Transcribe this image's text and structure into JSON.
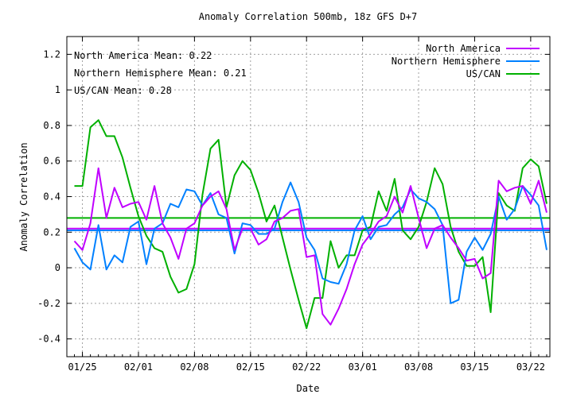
{
  "chart_data": {
    "type": "line",
    "title": "Anomaly Correlation 500mb, 18z GFS  D+7",
    "xlabel": "Date",
    "ylabel": "Anomaly Correlation",
    "ylim": [
      -0.5,
      1.3
    ],
    "y_ticks": [
      -0.4,
      -0.2,
      0,
      0.2,
      0.4,
      0.6,
      0.8,
      1,
      1.2
    ],
    "y_tick_labels": [
      "-0.4",
      "-0.2",
      "0",
      "0.2",
      "0.4",
      "0.6",
      "0.8",
      "1",
      "1.2"
    ],
    "x_start": "01/24",
    "x_end": "03/24",
    "x_ticks": [
      "01/25",
      "02/01",
      "02/08",
      "02/15",
      "02/22",
      "03/01",
      "03/08",
      "03/15",
      "03/22"
    ],
    "grid": true,
    "legend_position": "top-right",
    "annotations": [
      "North America Mean: 0.22",
      "Northern Hemisphere Mean: 0.21",
      "US/CAN Mean: 0.28"
    ],
    "series": [
      {
        "name": "North America",
        "color": "#c000ff",
        "mean": 0.22,
        "points": [
          [
            "01/24",
            0.15
          ],
          [
            "01/25",
            0.1
          ],
          [
            "01/26",
            0.25
          ],
          [
            "01/27",
            0.56
          ],
          [
            "01/28",
            0.28
          ],
          [
            "01/29",
            0.45
          ],
          [
            "01/30",
            0.34
          ],
          [
            "01/31",
            0.36
          ],
          [
            "02/01",
            0.37
          ],
          [
            "02/02",
            0.27
          ],
          [
            "02/03",
            0.46
          ],
          [
            "02/04",
            0.25
          ],
          [
            "02/05",
            0.17
          ],
          [
            "02/06",
            0.05
          ],
          [
            "02/07",
            0.22
          ],
          [
            "02/08",
            0.25
          ],
          [
            "02/09",
            0.35
          ],
          [
            "02/10",
            0.4
          ],
          [
            "02/11",
            0.43
          ],
          [
            "02/12",
            0.33
          ],
          [
            "02/13",
            0.1
          ],
          [
            "02/14",
            0.22
          ],
          [
            "02/15",
            0.22
          ],
          [
            "02/16",
            0.13
          ],
          [
            "02/17",
            0.16
          ],
          [
            "02/18",
            0.26
          ],
          [
            "02/19",
            0.28
          ],
          [
            "02/20",
            0.32
          ],
          [
            "02/21",
            0.33
          ],
          [
            "02/22",
            0.06
          ],
          [
            "02/23",
            0.07
          ],
          [
            "02/24",
            -0.26
          ],
          [
            "02/25",
            -0.32
          ],
          [
            "02/26",
            -0.23
          ],
          [
            "02/27",
            -0.12
          ],
          [
            "02/28",
            0.02
          ],
          [
            "03/01",
            0.13
          ],
          [
            "03/02",
            0.19
          ],
          [
            "03/03",
            0.26
          ],
          [
            "03/04",
            0.29
          ],
          [
            "03/05",
            0.4
          ],
          [
            "03/06",
            0.31
          ],
          [
            "03/07",
            0.46
          ],
          [
            "03/08",
            0.28
          ],
          [
            "03/09",
            0.11
          ],
          [
            "03/10",
            0.22
          ],
          [
            "03/11",
            0.24
          ],
          [
            "03/12",
            0.17
          ],
          [
            "03/13",
            0.11
          ],
          [
            "03/14",
            0.04
          ],
          [
            "03/15",
            0.05
          ],
          [
            "03/16",
            -0.06
          ],
          [
            "03/17",
            -0.03
          ],
          [
            "03/18",
            0.49
          ],
          [
            "03/19",
            0.43
          ],
          [
            "03/20",
            0.45
          ],
          [
            "03/21",
            0.46
          ],
          [
            "03/22",
            0.36
          ],
          [
            "03/23",
            0.49
          ],
          [
            "03/24",
            0.31
          ]
        ]
      },
      {
        "name": "Northern Hemisphere",
        "color": "#0080ff",
        "mean": 0.21,
        "points": [
          [
            "01/24",
            0.11
          ],
          [
            "01/25",
            0.03
          ],
          [
            "01/26",
            -0.01
          ],
          [
            "01/27",
            0.24
          ],
          [
            "01/28",
            -0.01
          ],
          [
            "01/29",
            0.07
          ],
          [
            "01/30",
            0.03
          ],
          [
            "01/31",
            0.23
          ],
          [
            "02/01",
            0.26
          ],
          [
            "02/02",
            0.02
          ],
          [
            "02/03",
            0.22
          ],
          [
            "02/04",
            0.25
          ],
          [
            "02/05",
            0.36
          ],
          [
            "02/06",
            0.34
          ],
          [
            "02/07",
            0.44
          ],
          [
            "02/08",
            0.43
          ],
          [
            "02/09",
            0.35
          ],
          [
            "02/10",
            0.42
          ],
          [
            "02/11",
            0.3
          ],
          [
            "02/12",
            0.28
          ],
          [
            "02/13",
            0.08
          ],
          [
            "02/14",
            0.25
          ],
          [
            "02/15",
            0.24
          ],
          [
            "02/16",
            0.19
          ],
          [
            "02/17",
            0.19
          ],
          [
            "02/18",
            0.22
          ],
          [
            "02/19",
            0.37
          ],
          [
            "02/20",
            0.48
          ],
          [
            "02/21",
            0.37
          ],
          [
            "02/22",
            0.17
          ],
          [
            "02/23",
            0.1
          ],
          [
            "02/24",
            -0.06
          ],
          [
            "02/25",
            -0.08
          ],
          [
            "02/26",
            -0.09
          ],
          [
            "02/27",
            0.02
          ],
          [
            "02/28",
            0.21
          ],
          [
            "03/01",
            0.29
          ],
          [
            "03/02",
            0.16
          ],
          [
            "03/03",
            0.23
          ],
          [
            "03/04",
            0.24
          ],
          [
            "03/05",
            0.3
          ],
          [
            "03/06",
            0.34
          ],
          [
            "03/07",
            0.44
          ],
          [
            "03/08",
            0.39
          ],
          [
            "03/09",
            0.37
          ],
          [
            "03/10",
            0.33
          ],
          [
            "03/11",
            0.24
          ],
          [
            "03/12",
            -0.2
          ],
          [
            "03/13",
            -0.18
          ],
          [
            "03/14",
            0.09
          ],
          [
            "03/15",
            0.17
          ],
          [
            "03/16",
            0.1
          ],
          [
            "03/17",
            0.19
          ],
          [
            "03/18",
            0.4
          ],
          [
            "03/19",
            0.27
          ],
          [
            "03/20",
            0.33
          ],
          [
            "03/21",
            0.46
          ],
          [
            "03/22",
            0.41
          ],
          [
            "03/23",
            0.35
          ],
          [
            "03/24",
            0.1
          ]
        ]
      },
      {
        "name": "US/CAN",
        "color": "#00b000",
        "mean": 0.28,
        "points": [
          [
            "01/24",
            0.46
          ],
          [
            "01/25",
            0.46
          ],
          [
            "01/26",
            0.79
          ],
          [
            "01/27",
            0.83
          ],
          [
            "01/28",
            0.74
          ],
          [
            "01/29",
            0.74
          ],
          [
            "01/30",
            0.62
          ],
          [
            "01/31",
            0.45
          ],
          [
            "02/01",
            0.29
          ],
          [
            "02/02",
            0.18
          ],
          [
            "02/03",
            0.11
          ],
          [
            "02/04",
            0.09
          ],
          [
            "02/05",
            -0.05
          ],
          [
            "02/06",
            -0.14
          ],
          [
            "02/07",
            -0.12
          ],
          [
            "02/08",
            0.02
          ],
          [
            "02/09",
            0.41
          ],
          [
            "02/10",
            0.67
          ],
          [
            "02/11",
            0.72
          ],
          [
            "02/12",
            0.34
          ],
          [
            "02/13",
            0.52
          ],
          [
            "02/14",
            0.6
          ],
          [
            "02/15",
            0.55
          ],
          [
            "02/16",
            0.42
          ],
          [
            "02/17",
            0.26
          ],
          [
            "02/18",
            0.35
          ],
          [
            "02/19",
            0.17
          ],
          [
            "02/20",
            -0.01
          ],
          [
            "02/21",
            -0.18
          ],
          [
            "02/22",
            -0.34
          ],
          [
            "02/23",
            -0.17
          ],
          [
            "02/24",
            -0.17
          ],
          [
            "02/25",
            0.15
          ],
          [
            "02/26",
            0.0
          ],
          [
            "02/27",
            0.07
          ],
          [
            "02/28",
            0.07
          ],
          [
            "03/01",
            0.21
          ],
          [
            "03/02",
            0.23
          ],
          [
            "03/03",
            0.43
          ],
          [
            "03/04",
            0.32
          ],
          [
            "03/05",
            0.5
          ],
          [
            "03/06",
            0.21
          ],
          [
            "03/07",
            0.16
          ],
          [
            "03/08",
            0.23
          ],
          [
            "03/09",
            0.37
          ],
          [
            "03/10",
            0.56
          ],
          [
            "03/11",
            0.47
          ],
          [
            "03/12",
            0.23
          ],
          [
            "03/13",
            0.09
          ],
          [
            "03/14",
            0.01
          ],
          [
            "03/15",
            0.01
          ],
          [
            "03/16",
            0.06
          ],
          [
            "03/17",
            -0.25
          ],
          [
            "03/18",
            0.42
          ],
          [
            "03/19",
            0.35
          ],
          [
            "03/20",
            0.32
          ],
          [
            "03/21",
            0.56
          ],
          [
            "03/22",
            0.61
          ],
          [
            "03/23",
            0.57
          ],
          [
            "03/24",
            0.36
          ]
        ]
      }
    ]
  }
}
